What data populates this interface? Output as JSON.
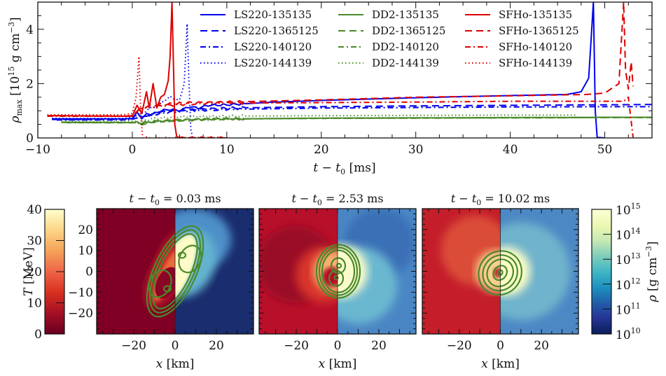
{
  "chart_data": [
    {
      "type": "line",
      "title": "",
      "xlabel": "t − t₀ [ms]",
      "ylabel": "ρmax [10¹⁵ g cm⁻³]",
      "xlim": [
        -10,
        55
      ],
      "ylim": [
        0,
        5
      ],
      "xticks": [
        -10,
        0,
        10,
        20,
        30,
        40,
        50
      ],
      "xtick_labels": [
        "−10",
        "0",
        "10",
        "20",
        "30",
        "40",
        "50"
      ],
      "yticks": [
        0,
        2,
        4
      ],
      "ytick_labels": [
        "0",
        "2",
        "4"
      ],
      "grid": false,
      "legend_position": "top-right",
      "legend_columns": 3,
      "series": [
        {
          "name": "LS220-135135",
          "color": "#0000ee",
          "style": "solid",
          "x": [
            -8.5,
            -1,
            0,
            0.5,
            1,
            1.5,
            2,
            3,
            4,
            5,
            6,
            7,
            8,
            10,
            15,
            20,
            30,
            40,
            46,
            47.5,
            48.3,
            48.8,
            49.0,
            49.2,
            50
          ],
          "y": [
            0.7,
            0.7,
            0.72,
            0.95,
            0.7,
            0.9,
            0.85,
            1.0,
            1.05,
            1.0,
            1.15,
            1.1,
            1.2,
            1.22,
            1.32,
            1.38,
            1.48,
            1.56,
            1.6,
            1.7,
            2.2,
            5.0,
            1.0,
            0.02,
            0
          ]
        },
        {
          "name": "LS220-1365125",
          "color": "#0000ee",
          "style": "dashed",
          "x": [
            -8.5,
            -1,
            0,
            0.5,
            1,
            2,
            3,
            5,
            7,
            10,
            20,
            30,
            40,
            50,
            55
          ],
          "y": [
            0.68,
            0.68,
            0.7,
            0.9,
            0.75,
            0.85,
            0.95,
            1.0,
            1.05,
            1.1,
            1.15,
            1.18,
            1.2,
            1.22,
            1.23
          ]
        },
        {
          "name": "LS220-140120",
          "color": "#0000ee",
          "style": "dashdot",
          "x": [
            -8,
            -1,
            0,
            1,
            2,
            4,
            6,
            10,
            20,
            30,
            40,
            50,
            55
          ],
          "y": [
            0.66,
            0.66,
            0.68,
            0.8,
            0.85,
            0.95,
            1.0,
            1.05,
            1.1,
            1.12,
            1.14,
            1.15,
            1.15
          ]
        },
        {
          "name": "LS220-144139",
          "color": "#0000ee",
          "style": "dotted",
          "x": [
            -8.5,
            -1,
            0,
            1,
            2,
            3,
            4,
            5,
            5.5,
            5.8,
            6.0,
            6.2,
            6.4
          ],
          "y": [
            0.72,
            0.72,
            0.75,
            0.9,
            1.1,
            1.3,
            1.5,
            1.4,
            2.0,
            4.2,
            2.0,
            0.3,
            0
          ]
        },
        {
          "name": "DD2-135135",
          "color": "#4b8a2a",
          "style": "solid",
          "x": [
            -7.5,
            -1,
            0,
            0.5,
            1,
            2,
            3,
            5,
            10,
            20,
            30,
            40,
            50,
            55
          ],
          "y": [
            0.58,
            0.57,
            0.56,
            0.6,
            0.5,
            0.58,
            0.62,
            0.66,
            0.7,
            0.73,
            0.74,
            0.75,
            0.76,
            0.76
          ]
        },
        {
          "name": "DD2-1365125",
          "color": "#4b8a2a",
          "style": "dashed",
          "x": [
            -7.5,
            -1,
            0,
            1,
            2,
            5,
            10,
            20,
            30,
            40,
            50,
            55
          ],
          "y": [
            0.57,
            0.56,
            0.56,
            0.55,
            0.6,
            0.65,
            0.7,
            0.72,
            0.73,
            0.74,
            0.75,
            0.75
          ]
        },
        {
          "name": "DD2-140120",
          "color": "#4b8a2a",
          "style": "dashdot",
          "x": [
            -7,
            -1,
            0,
            1,
            2,
            5,
            10,
            20,
            30,
            40,
            50,
            55
          ],
          "y": [
            0.56,
            0.56,
            0.57,
            0.55,
            0.6,
            0.65,
            0.7,
            0.72,
            0.73,
            0.74,
            0.75,
            0.75
          ]
        },
        {
          "name": "DD2-144139",
          "color": "#4b8a2a",
          "style": "dotted",
          "x": [
            -7.5,
            -1,
            0,
            1,
            2,
            5,
            10,
            20,
            30,
            40,
            47
          ],
          "y": [
            0.6,
            0.6,
            0.62,
            0.6,
            0.7,
            0.78,
            0.8,
            0.82,
            0.83,
            0.84,
            0.84
          ]
        },
        {
          "name": "SFHo-135135",
          "color": "#dd0000",
          "style": "solid",
          "x": [
            -9,
            -1,
            0,
            0.5,
            1,
            1.5,
            1.8,
            2.2,
            2.6,
            3.0,
            3.4,
            3.8,
            4.0,
            4.2,
            4.4,
            4.5,
            4.7,
            5.0,
            6,
            10
          ],
          "y": [
            0.82,
            0.8,
            0.8,
            1.2,
            0.9,
            1.7,
            1.1,
            2.0,
            1.1,
            1.5,
            1.6,
            2.1,
            3.0,
            5.0,
            2.0,
            0.5,
            0.05,
            0,
            0,
            0
          ]
        },
        {
          "name": "SFHo-1365125",
          "color": "#dd0000",
          "style": "dashed",
          "x": [
            -9,
            -1,
            0,
            1,
            2,
            4,
            6,
            8,
            10,
            20,
            30,
            40,
            48,
            50,
            51.5,
            52,
            52.2,
            52.5,
            52.8,
            53
          ],
          "y": [
            0.82,
            0.8,
            0.82,
            1.1,
            1.2,
            1.25,
            1.3,
            1.3,
            1.32,
            1.4,
            1.5,
            1.55,
            1.6,
            1.65,
            2.0,
            5.0,
            2.5,
            1.8,
            2.8,
            1.9
          ]
        },
        {
          "name": "SFHo-140120",
          "color": "#dd0000",
          "style": "dashdot",
          "x": [
            -9,
            -1,
            0,
            1,
            2,
            4,
            6,
            10,
            20,
            30,
            40,
            50,
            52,
            52.5,
            53
          ],
          "y": [
            0.8,
            0.8,
            0.82,
            1.1,
            1.15,
            1.2,
            1.25,
            1.28,
            1.3,
            1.32,
            1.35,
            1.35,
            1.35,
            1.5,
            0.02
          ]
        },
        {
          "name": "SFHo-144139",
          "color": "#dd0000",
          "style": "dotted",
          "x": [
            -9,
            -1,
            0,
            0.4,
            0.7,
            0.9,
            1.1,
            1.5,
            3,
            6,
            10
          ],
          "y": [
            0.85,
            0.85,
            0.9,
            1.5,
            3.0,
            0.8,
            0.0,
            0.0,
            0.0,
            0.0,
            0.0
          ]
        }
      ]
    },
    {
      "type": "heatmap",
      "title": "t − t₀ = 0.03 ms",
      "xlabel": "x [km]",
      "ylabel": "",
      "xlim": [
        -38,
        38
      ],
      "ylim": [
        -30,
        30
      ],
      "xticks": [
        -20,
        0,
        20
      ],
      "xtick_labels": [
        "−20",
        "0",
        "20"
      ],
      "yticks": [
        20,
        10,
        0,
        -10,
        -20
      ],
      "ytick_labels": [
        "20",
        "10",
        "0",
        "−10",
        "−20"
      ],
      "left_half": "temperature T",
      "right_half": "density ρ",
      "contours": "density contours (green), binary double-lobe elongated along diagonal"
    },
    {
      "type": "heatmap",
      "title": "t − t₀ = 2.53 ms",
      "xlabel": "x [km]",
      "xlim": [
        -38,
        38
      ],
      "ylim": [
        -30,
        30
      ],
      "xticks": [
        -20,
        0,
        20
      ],
      "xtick_labels": [
        "−20",
        "0",
        "20"
      ],
      "left_half": "temperature T",
      "right_half": "density ρ",
      "contours": "merging core, figure-eight inner contours"
    },
    {
      "type": "heatmap",
      "title": "t − t₀ = 10.02 ms",
      "xlabel": "x [km]",
      "xlim": [
        -38,
        38
      ],
      "ylim": [
        -30,
        30
      ],
      "xticks": [
        -20,
        0,
        20
      ],
      "xtick_labels": [
        "−20",
        "0",
        "20"
      ],
      "left_half": "temperature T",
      "right_half": "density ρ",
      "contours": "concentric elliptical remnant contours"
    }
  ],
  "colorbars": {
    "temperature": {
      "label": "T [MeV]",
      "range": [
        0,
        40
      ],
      "ticks": [
        "0",
        "10",
        "20",
        "30",
        "40"
      ],
      "colors": [
        "#67001f",
        "#a50f26",
        "#d7301f",
        "#ef6548",
        "#f4a259",
        "#fdd587",
        "#ffffcc"
      ]
    },
    "density": {
      "label": "ρ [g cm⁻³]",
      "range_log10": [
        10,
        15
      ],
      "ticks": [
        "10¹⁰",
        "10¹¹",
        "10¹²",
        "10¹³",
        "10¹⁴",
        "10¹⁵"
      ],
      "tick_exponents": [
        "10",
        "11",
        "12",
        "13",
        "14",
        "15"
      ],
      "colors": [
        "#081d58",
        "#253494",
        "#225ea8",
        "#1d91c0",
        "#41b6c4",
        "#7fcdbb",
        "#c7e9b4",
        "#edf8b1",
        "#ffffd9"
      ]
    }
  },
  "contour_color": "#4b8a2a",
  "labels": {
    "top_ylabel_rho": "ρ",
    "top_ylabel_sub": "max",
    "top_ylabel_unit_a": " [10",
    "top_ylabel_exp": "15",
    "top_ylabel_unit_b": " g cm",
    "top_ylabel_exp2": "−3",
    "top_ylabel_close": "]",
    "top_xlabel_t": "t",
    "top_xlabel_mid": " − ",
    "top_xlabel_t0": "t",
    "top_xlabel_sub": "0",
    "top_xlabel_unit": " [ms]",
    "T_label_sym": "T",
    "T_label_unit": " [MeV]",
    "rho_label_sym": "ρ",
    "rho_label_unit": " [g cm",
    "rho_label_exp": "−3",
    "rho_label_close": "]",
    "x_km_sym": "x",
    "x_km_unit": " [km]",
    "panel_title_prefix_t": "t",
    "panel_title_minus": " − ",
    "panel_title_t0": "t",
    "panel_title_sub": "0",
    "panel_times": [
      "= 0.03 ms",
      "= 2.53 ms",
      "= 10.02 ms"
    ]
  }
}
